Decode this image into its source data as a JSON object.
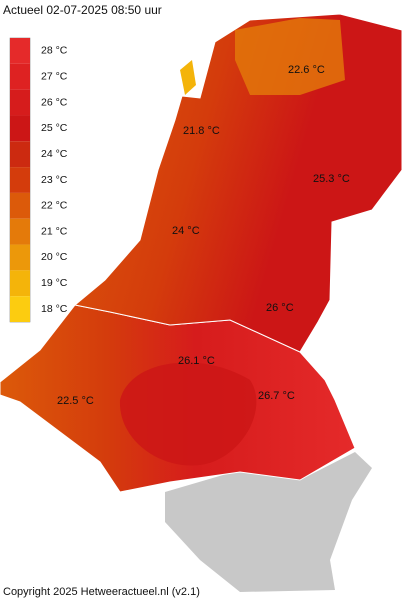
{
  "title": "Actueel 02-07-2025  08:50 uur",
  "legend": [
    {
      "label": "28 °C",
      "color": "#e52a2a"
    },
    {
      "label": "27 °C",
      "color": "#de2222"
    },
    {
      "label": "26 °C",
      "color": "#d61c1c"
    },
    {
      "label": "25 °C",
      "color": "#cc1616"
    },
    {
      "label": "24 °C",
      "color": "#cc2a10"
    },
    {
      "label": "23 °C",
      "color": "#d43c0c"
    },
    {
      "label": "22 °C",
      "color": "#dc5a0a"
    },
    {
      "label": "21 °C",
      "color": "#e47a0a"
    },
    {
      "label": "20 °C",
      "color": "#ec980a"
    },
    {
      "label": "19 °C",
      "color": "#f4b40a"
    },
    {
      "label": "18 °C",
      "color": "#fccc10"
    }
  ],
  "stations": [
    "22.6 °C",
    "21.8 °C",
    "25.3 °C",
    "24 °C",
    "26 °C",
    "26.1 °C",
    "22.5 °C",
    "26.7 °C"
  ],
  "copyright": "Copyright 2025 Hetweeractueel.nl (v2.1)"
}
